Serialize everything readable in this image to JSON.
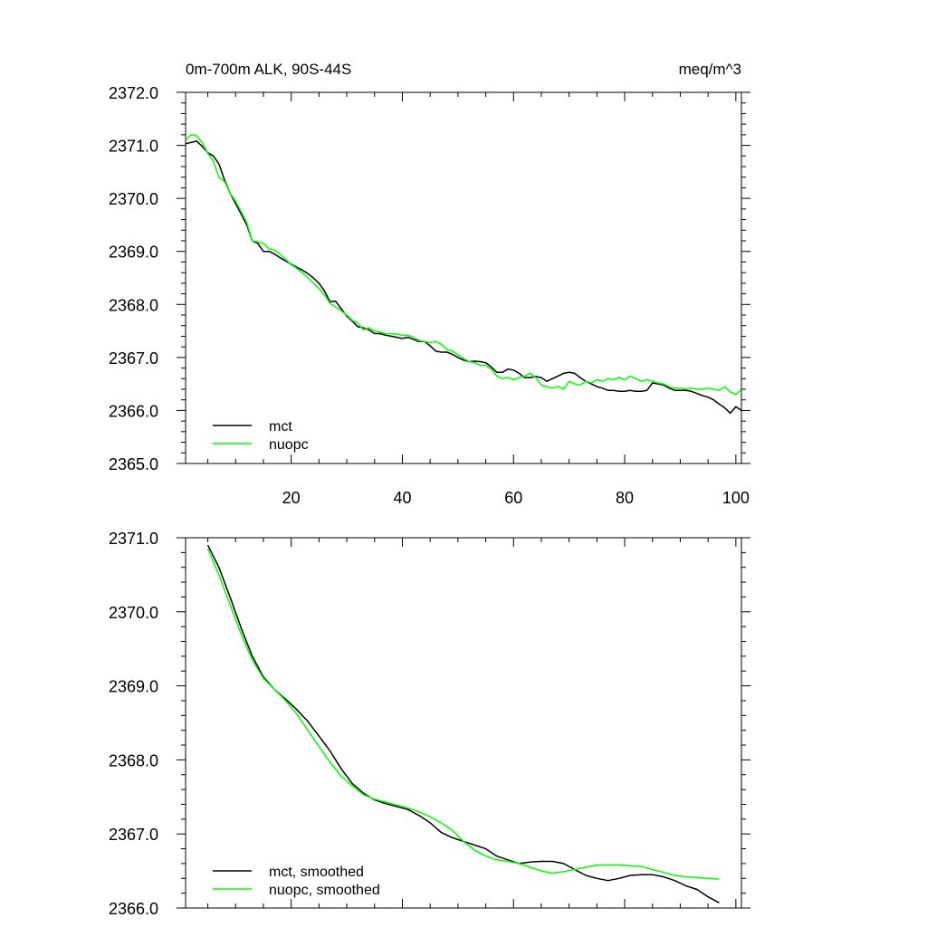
{
  "chart_data": [
    {
      "type": "line",
      "title": "0m-700m ALK, 90S-44S",
      "units": "meq/m^3",
      "xlim": [
        1,
        101
      ],
      "ylim": [
        2365,
        2372
      ],
      "xticks": [
        20,
        40,
        60,
        80,
        100
      ],
      "xtick_labels": [
        "20",
        "40",
        "60",
        "80",
        "100"
      ],
      "yticks": [
        2365,
        2366,
        2367,
        2368,
        2369,
        2370,
        2371,
        2372
      ],
      "ytick_labels": [
        "2365.0",
        "2366.0",
        "2367.0",
        "2368.0",
        "2369.0",
        "2370.0",
        "2371.0",
        "2372.0"
      ],
      "legend_position": "bottom-left",
      "series": [
        {
          "name": "mct",
          "color": "#000000",
          "x": [
            1,
            3,
            4,
            5,
            6,
            7,
            8,
            9,
            10,
            11,
            12,
            13,
            14,
            15,
            16,
            17,
            18,
            19,
            20,
            21,
            22,
            23,
            24,
            25,
            26,
            27,
            28,
            29,
            30,
            31,
            32,
            33,
            34,
            35,
            36,
            37,
            38,
            39,
            40,
            41,
            42,
            43,
            44,
            45,
            46,
            47,
            48,
            49,
            50,
            51,
            52,
            53,
            54,
            55,
            56,
            57,
            58,
            59,
            60,
            61,
            62,
            63,
            64,
            65,
            66,
            67,
            68,
            69,
            70,
            71,
            72,
            73,
            74,
            75,
            76,
            77,
            78,
            79,
            80,
            81,
            82,
            83,
            84,
            85,
            86,
            87,
            88,
            89,
            90,
            91,
            92,
            93,
            94,
            95,
            96,
            97,
            98,
            99,
            100,
            101
          ],
          "y": [
            2371.03,
            2371.08,
            2370.98,
            2370.86,
            2370.8,
            2370.65,
            2370.35,
            2370.1,
            2369.9,
            2369.7,
            2369.5,
            2369.2,
            2369.15,
            2369.0,
            2369.0,
            2368.95,
            2368.88,
            2368.82,
            2368.76,
            2368.7,
            2368.65,
            2368.58,
            2368.5,
            2368.4,
            2368.25,
            2368.05,
            2368.06,
            2367.92,
            2367.78,
            2367.68,
            2367.58,
            2367.56,
            2367.52,
            2367.45,
            2367.45,
            2367.42,
            2367.4,
            2367.38,
            2367.36,
            2367.38,
            2367.34,
            2367.3,
            2367.3,
            2367.22,
            2367.12,
            2367.1,
            2367.1,
            2367.06,
            2367.0,
            2366.95,
            2366.92,
            2366.93,
            2366.92,
            2366.9,
            2366.82,
            2366.72,
            2366.72,
            2366.78,
            2366.76,
            2366.7,
            2366.62,
            2366.62,
            2366.64,
            2366.62,
            2366.55,
            2366.6,
            2366.65,
            2366.7,
            2366.72,
            2366.7,
            2366.62,
            2366.55,
            2366.5,
            2366.45,
            2366.42,
            2366.38,
            2366.38,
            2366.36,
            2366.36,
            2366.38,
            2366.36,
            2366.36,
            2366.38,
            2366.52,
            2366.5,
            2366.48,
            2366.42,
            2366.38,
            2366.38,
            2366.38,
            2366.36,
            2366.32,
            2366.28,
            2366.25,
            2366.2,
            2366.12,
            2366.05,
            2365.95,
            2366.07,
            2366.0
          ]
        },
        {
          "name": "nuopc",
          "color": "#00ff00",
          "x": [
            1,
            2,
            3,
            4,
            5,
            6,
            7,
            8,
            9,
            10,
            11,
            12,
            13,
            14,
            15,
            16,
            17,
            18,
            19,
            20,
            21,
            22,
            23,
            24,
            25,
            26,
            27,
            28,
            29,
            30,
            31,
            32,
            33,
            34,
            35,
            36,
            37,
            38,
            39,
            40,
            41,
            42,
            43,
            44,
            45,
            46,
            47,
            48,
            49,
            50,
            51,
            52,
            53,
            54,
            55,
            56,
            57,
            58,
            59,
            60,
            61,
            62,
            63,
            64,
            65,
            66,
            67,
            68,
            69,
            70,
            71,
            72,
            73,
            74,
            75,
            76,
            77,
            78,
            79,
            80,
            81,
            82,
            83,
            84,
            85,
            86,
            87,
            88,
            89,
            90,
            91,
            92,
            93,
            94,
            95,
            96,
            97,
            98,
            99,
            100,
            101
          ],
          "y": [
            2371.1,
            2371.2,
            2371.18,
            2371.05,
            2370.85,
            2370.7,
            2370.4,
            2370.32,
            2370.1,
            2369.95,
            2369.75,
            2369.55,
            2369.2,
            2369.18,
            2369.15,
            2369.05,
            2369.02,
            2368.95,
            2368.85,
            2368.75,
            2368.68,
            2368.6,
            2368.5,
            2368.4,
            2368.3,
            2368.18,
            2368.02,
            2367.95,
            2367.88,
            2367.8,
            2367.7,
            2367.65,
            2367.52,
            2367.56,
            2367.5,
            2367.48,
            2367.45,
            2367.45,
            2367.44,
            2367.42,
            2367.42,
            2367.38,
            2367.32,
            2367.3,
            2367.28,
            2367.3,
            2367.25,
            2367.15,
            2367.12,
            2367.05,
            2366.98,
            2366.92,
            2366.9,
            2366.85,
            2366.85,
            2366.78,
            2366.65,
            2366.6,
            2366.62,
            2366.58,
            2366.62,
            2366.65,
            2366.7,
            2366.62,
            2366.48,
            2366.45,
            2366.42,
            2366.45,
            2366.4,
            2366.55,
            2366.5,
            2366.48,
            2366.55,
            2366.52,
            2366.58,
            2366.55,
            2366.6,
            2366.58,
            2366.62,
            2366.58,
            2366.65,
            2366.6,
            2366.55,
            2366.58,
            2366.55,
            2366.52,
            2366.5,
            2366.45,
            2366.42,
            2366.42,
            2366.4,
            2366.42,
            2366.4,
            2366.4,
            2366.42,
            2366.4,
            2366.38,
            2366.45,
            2366.35,
            2366.3,
            2366.4
          ]
        }
      ]
    },
    {
      "type": "line",
      "xlim": [
        1,
        101
      ],
      "ylim": [
        2366,
        2371
      ],
      "xticks": [
        20,
        40,
        60,
        80,
        100
      ],
      "yticks": [
        2366,
        2367,
        2368,
        2369,
        2370,
        2371
      ],
      "ytick_labels": [
        "2366.0",
        "2367.0",
        "2368.0",
        "2369.0",
        "2370.0",
        "2371.0"
      ],
      "legend_position": "bottom-left",
      "series": [
        {
          "name": "mct, smoothed",
          "color": "#000000",
          "x": [
            5,
            7,
            9,
            11,
            13,
            15,
            17,
            19,
            21,
            23,
            25,
            27,
            29,
            31,
            33,
            35,
            37,
            39,
            41,
            43,
            45,
            47,
            49,
            51,
            53,
            55,
            57,
            59,
            61,
            63,
            65,
            67,
            69,
            71,
            73,
            75,
            77,
            79,
            81,
            83,
            85,
            87,
            89,
            91,
            93,
            95,
            97
          ],
          "y": [
            2370.9,
            2370.6,
            2370.2,
            2369.78,
            2369.4,
            2369.12,
            2368.95,
            2368.82,
            2368.68,
            2368.52,
            2368.32,
            2368.12,
            2367.88,
            2367.68,
            2367.55,
            2367.46,
            2367.41,
            2367.37,
            2367.33,
            2367.25,
            2367.15,
            2367.02,
            2366.95,
            2366.9,
            2366.85,
            2366.8,
            2366.7,
            2366.65,
            2366.6,
            2366.62,
            2366.63,
            2366.63,
            2366.6,
            2366.52,
            2366.44,
            2366.4,
            2366.37,
            2366.4,
            2366.44,
            2366.45,
            2366.45,
            2366.42,
            2366.37,
            2366.3,
            2366.25,
            2366.15,
            2366.07
          ]
        },
        {
          "name": "nuopc, smoothed",
          "color": "#00ff00",
          "x": [
            5,
            7,
            9,
            11,
            13,
            15,
            17,
            19,
            21,
            23,
            25,
            27,
            29,
            31,
            33,
            35,
            37,
            39,
            41,
            43,
            45,
            47,
            49,
            51,
            53,
            55,
            57,
            59,
            61,
            63,
            65,
            67,
            69,
            71,
            73,
            75,
            77,
            79,
            81,
            83,
            85,
            87,
            89,
            91,
            93,
            95,
            97
          ],
          "y": [
            2370.85,
            2370.5,
            2370.1,
            2369.7,
            2369.35,
            2369.1,
            2368.95,
            2368.8,
            2368.62,
            2368.4,
            2368.18,
            2367.97,
            2367.78,
            2367.65,
            2367.53,
            2367.47,
            2367.43,
            2367.39,
            2367.35,
            2367.3,
            2367.23,
            2367.15,
            2367.05,
            2366.9,
            2366.78,
            2366.7,
            2366.65,
            2366.63,
            2366.6,
            2366.55,
            2366.5,
            2366.47,
            2366.49,
            2366.52,
            2366.55,
            2366.58,
            2366.58,
            2366.58,
            2366.57,
            2366.56,
            2366.52,
            2366.48,
            2366.44,
            2366.42,
            2366.41,
            2366.4,
            2366.39
          ]
        }
      ]
    }
  ]
}
